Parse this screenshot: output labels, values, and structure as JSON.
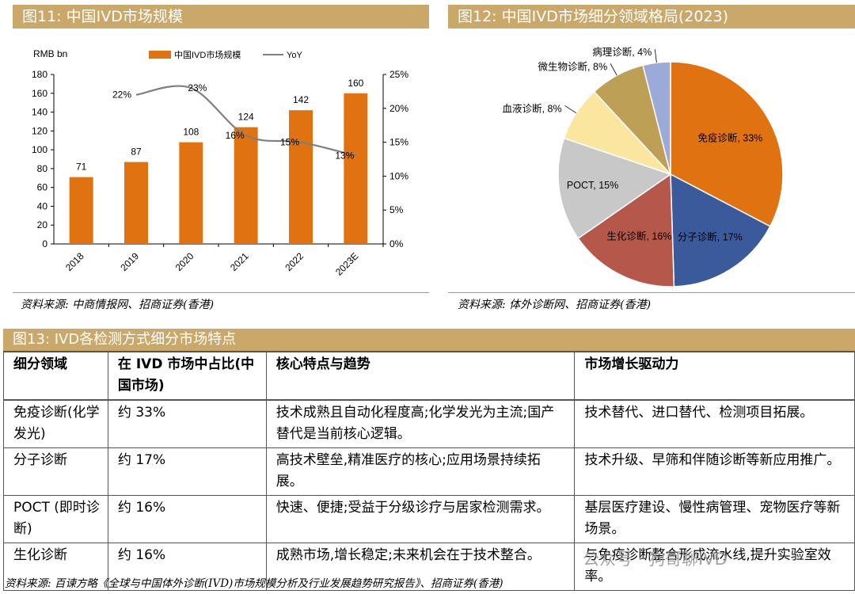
{
  "fig11": {
    "title": "图11:  中国IVD市场规模",
    "source": "资料来源:  中商情报网、招商证券(香港)",
    "chart_data": {
      "type": "bar",
      "unit_label": "RMB bn",
      "categories": [
        "2018",
        "2019",
        "2020",
        "2021",
        "2022",
        "2023E"
      ],
      "series": [
        {
          "name": "中国IVD市场规模",
          "values": [
            71,
            87,
            108,
            124,
            142,
            160
          ],
          "color": "#e07310"
        },
        {
          "name": "YoY",
          "type": "line",
          "values": [
            null,
            22,
            23,
            16,
            15,
            13
          ],
          "labels": [
            "",
            "22%",
            "23%",
            "16%",
            "15%",
            "13%"
          ],
          "color": "#7f7f7f"
        }
      ],
      "ylim": [
        0,
        180
      ],
      "yticks": [
        0,
        20,
        40,
        60,
        80,
        100,
        120,
        140,
        160,
        180
      ],
      "y2lim": [
        0,
        25
      ],
      "y2ticks": [
        "0%",
        "5%",
        "10%",
        "15%",
        "20%",
        "25%"
      ]
    }
  },
  "fig12": {
    "title": "图12:  中国IVD市场细分领域格局(2023)",
    "source": "资料来源:  体外诊断网、招商证券(香港)",
    "chart_data": {
      "type": "pie",
      "slices": [
        {
          "label": "免疫诊断, 33%",
          "value": 33,
          "color": "#e07310"
        },
        {
          "label": "分子诊断, 17%",
          "value": 17,
          "color": "#3b5a9b"
        },
        {
          "label": "生化诊断, 16%",
          "value": 16,
          "color": "#b5584a"
        },
        {
          "label": "POCT, 15%",
          "value": 15,
          "color": "#c8c8c8"
        },
        {
          "label": "血液诊断, 8%",
          "value": 8,
          "color": "#fbe6a0"
        },
        {
          "label": "微生物诊断, 8%",
          "value": 8,
          "color": "#bd9f55"
        },
        {
          "label": "病理诊断, 4%",
          "value": 4,
          "color": "#9caad8"
        }
      ]
    }
  },
  "fig13": {
    "title": "图13:  IVD各检测方式细分市场特点",
    "source": "资料来源:  百谏方略《全球与中国体外诊断(IVD)市场规模分析及行业发展趋势研究报告》、招商证券(香港)",
    "headers": [
      "细分领域",
      "在 IVD 市场中占比(中国市场)",
      "核心特点与趋势",
      "市场增长驱动力"
    ],
    "rows": [
      [
        "免疫诊断(化学发光)",
        "约 33%",
        "技术成熟且自动化程度高;化学发光为主流;国产替代是当前核心逻辑。",
        "技术替代、进口替代、检测项目拓展。"
      ],
      [
        "分子诊断",
        "约 17%",
        "高技术壁垒,精准医疗的核心;应用场景持续拓展。",
        "技术升级、早筛和伴随诊断等新应用推广。"
      ],
      [
        "POCT (即时诊断)",
        "约 16%",
        "快速、便捷;受益于分级诊疗与居家检测需求。",
        "基层医疗建设、慢性病管理、宠物医疗等新场景。"
      ],
      [
        "生化诊断",
        "约 16%",
        "成熟市场,增长稳定;未来机会在于技术整合。",
        "与免疫诊断整合形成流水线,提升实验室效率。"
      ]
    ]
  },
  "watermark": "公众号 · 狗哥聊IVD"
}
